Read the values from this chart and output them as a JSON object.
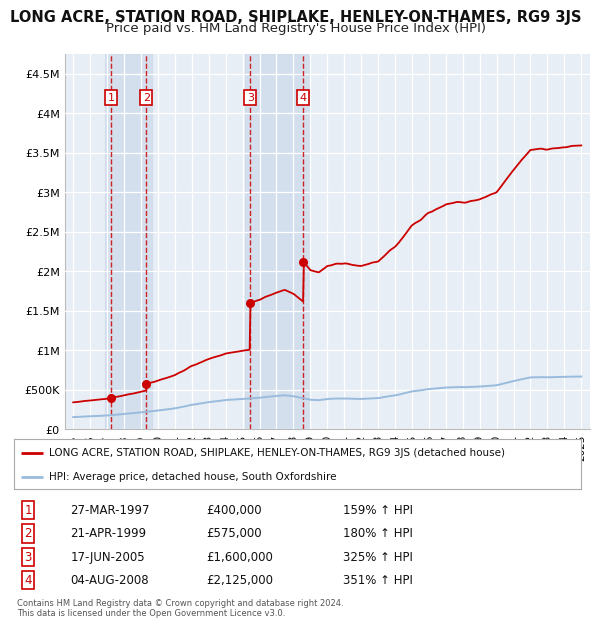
{
  "title": "LONG ACRE, STATION ROAD, SHIPLAKE, HENLEY-ON-THAMES, RG9 3JS",
  "subtitle": "Price paid vs. HM Land Registry's House Price Index (HPI)",
  "title_fontsize": 10.5,
  "subtitle_fontsize": 9.5,
  "background_color": "#ffffff",
  "plot_bg_color": "#e8eef5",
  "grid_color": "#ffffff",
  "ylim": [
    0,
    4750000
  ],
  "yticks": [
    0,
    500000,
    1000000,
    1500000,
    2000000,
    2500000,
    3000000,
    3500000,
    4000000,
    4500000
  ],
  "ytick_labels": [
    "£0",
    "£500K",
    "£1M",
    "£1.5M",
    "£2M",
    "£2.5M",
    "£3M",
    "£3.5M",
    "£4M",
    "£4.5M"
  ],
  "sale_dates_num": [
    1997.23,
    1999.31,
    2005.46,
    2008.59
  ],
  "sale_prices": [
    400000,
    575000,
    1600000,
    2125000
  ],
  "sale_labels": [
    "1",
    "2",
    "3",
    "4"
  ],
  "sale_pct": [
    "159%",
    "180%",
    "325%",
    "351%"
  ],
  "sale_date_strs": [
    "27-MAR-1997",
    "21-APR-1999",
    "17-JUN-2005",
    "04-AUG-2008"
  ],
  "sale_price_strs": [
    "£400,000",
    "£575,000",
    "£1,600,000",
    "£2,125,000"
  ],
  "red_color": "#cc0000",
  "hpi_color": "#99bbdd",
  "shade_color": "#cddaeb",
  "footer_text": "Contains HM Land Registry data © Crown copyright and database right 2024.\nThis data is licensed under the Open Government Licence v3.0.",
  "legend_line1": "LONG ACRE, STATION ROAD, SHIPLAKE, HENLEY-ON-THAMES, RG9 3JS (detached house)",
  "legend_line2": "HPI: Average price, detached house, South Oxfordshire",
  "xlim_start": 1994.5,
  "xlim_end": 2025.5
}
